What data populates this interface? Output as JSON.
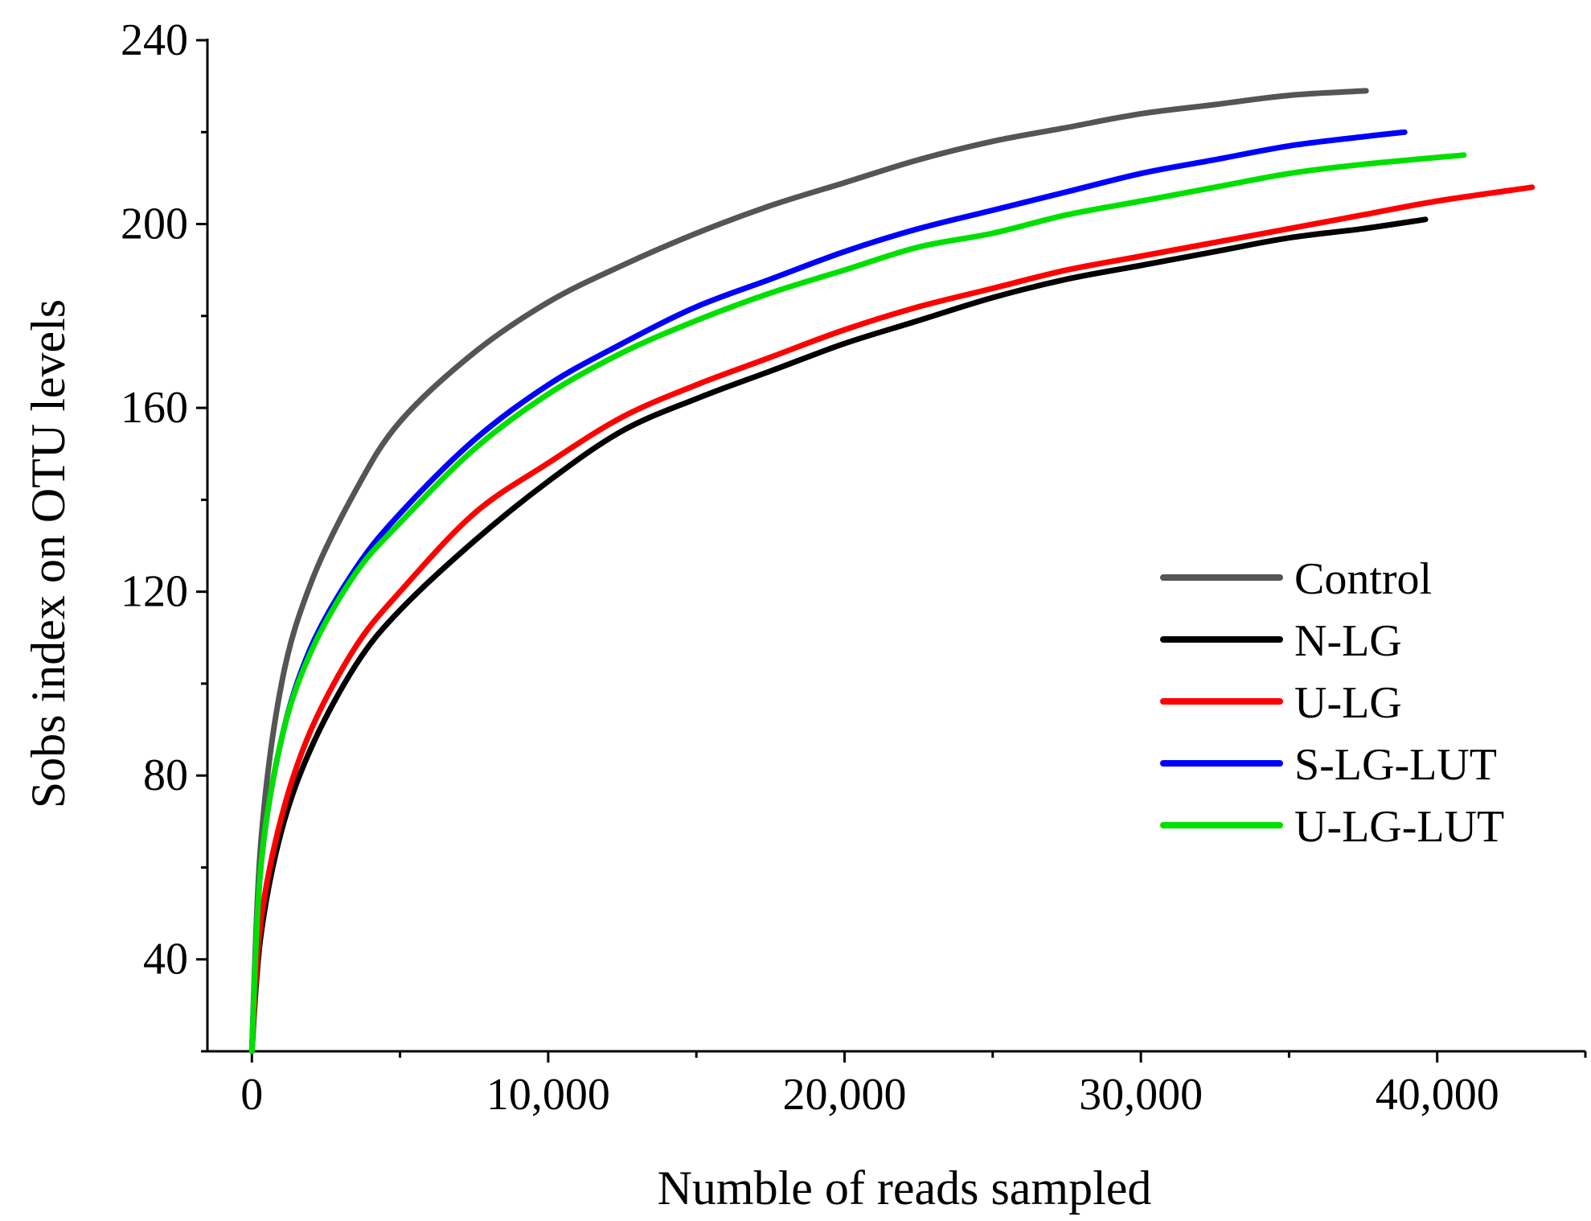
{
  "chart_data": {
    "type": "line",
    "title": "",
    "xlabel": "Numble of reads sampled",
    "ylabel": "Sobs index on OTU levels",
    "xlim": [
      -1500,
      45000
    ],
    "ylim": [
      20,
      240
    ],
    "xticks": [
      0,
      10000,
      20000,
      30000,
      40000
    ],
    "xtick_labels": [
      "0",
      "10,000",
      "20,000",
      "30,000",
      "40,000"
    ],
    "yticks": [
      40,
      80,
      120,
      160,
      200,
      240
    ],
    "ytick_labels": [
      "40",
      "80",
      "120",
      "160",
      "200",
      "240"
    ],
    "legend_position": "center-right",
    "series": [
      {
        "name": "Control",
        "color": "#555555",
        "x": [
          0,
          300,
          1000,
          2000,
          3500,
          5000,
          7500,
          10000,
          12500,
          15000,
          17500,
          20000,
          22500,
          25000,
          27500,
          30000,
          32500,
          35000,
          37600
        ],
        "y": [
          20,
          65,
          100,
          122,
          142,
          157,
          172,
          183,
          191,
          198,
          204,
          209,
          214,
          218,
          221,
          224,
          226,
          228,
          229
        ]
      },
      {
        "name": "N-LG",
        "color": "#000000",
        "x": [
          0,
          300,
          1000,
          2000,
          3500,
          5000,
          7500,
          10000,
          12500,
          15000,
          17500,
          20000,
          22500,
          25000,
          27500,
          30000,
          32500,
          35000,
          37500,
          39600
        ],
        "y": [
          20,
          45,
          68,
          86,
          104,
          116,
          131,
          144,
          155,
          162,
          168,
          174,
          179,
          184,
          188,
          191,
          194,
          197,
          199,
          201
        ]
      },
      {
        "name": "U-LG",
        "color": "#ff0000",
        "x": [
          0,
          300,
          1000,
          2000,
          3500,
          5000,
          7500,
          10000,
          12500,
          15000,
          17500,
          20000,
          22500,
          25000,
          27500,
          30000,
          32500,
          35000,
          37500,
          40000,
          43200
        ],
        "y": [
          20,
          48,
          71,
          90,
          108,
          120,
          137,
          148,
          158,
          165,
          171,
          177,
          182,
          186,
          190,
          193,
          196,
          199,
          202,
          205,
          208
        ]
      },
      {
        "name": "S-LG-LUT",
        "color": "#0000ff",
        "x": [
          0,
          300,
          1000,
          2000,
          3500,
          5000,
          7500,
          10000,
          12500,
          15000,
          17500,
          20000,
          22500,
          25000,
          27500,
          30000,
          32500,
          35000,
          37500,
          38900
        ],
        "y": [
          20,
          60,
          88,
          108,
          125,
          137,
          153,
          165,
          174,
          182,
          188,
          194,
          199,
          203,
          207,
          211,
          214,
          217,
          219,
          220
        ]
      },
      {
        "name": "U-LG-LUT",
        "color": "#00e000",
        "x": [
          0,
          300,
          1000,
          2000,
          3500,
          5000,
          7500,
          10000,
          12500,
          15000,
          17500,
          20000,
          22500,
          25000,
          27500,
          30000,
          32500,
          35000,
          37500,
          40900
        ],
        "y": [
          20,
          60,
          88,
          107,
          124,
          135,
          151,
          163,
          172,
          179,
          185,
          190,
          195,
          198,
          202,
          205,
          208,
          211,
          213,
          215
        ]
      }
    ]
  }
}
